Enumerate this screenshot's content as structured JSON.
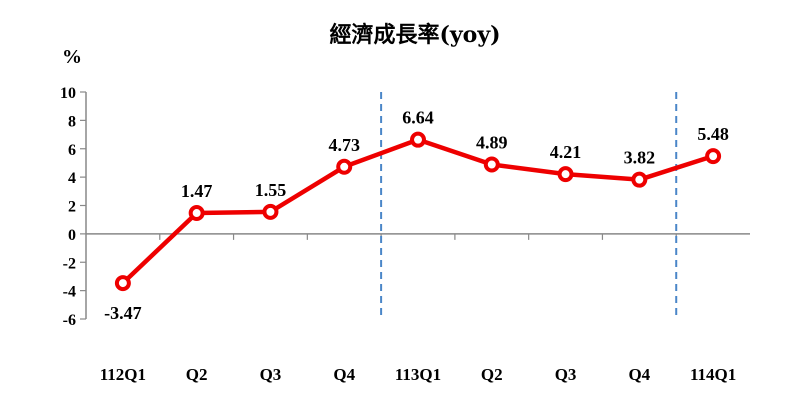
{
  "chart_data": {
    "type": "line",
    "title": "經濟成長率(yoy)",
    "ylabel": "%",
    "xlabel": "",
    "categories": [
      "112Q1",
      "Q2",
      "Q3",
      "Q4",
      "113Q1",
      "Q2",
      "Q3",
      "Q4",
      "114Q1"
    ],
    "series": [
      {
        "values": [
          -3.47,
          1.47,
          1.55,
          4.73,
          6.64,
          4.89,
          4.21,
          3.82,
          5.48
        ]
      }
    ],
    "data_labels": [
      "-3.47",
      "1.47",
      "1.55",
      "4.73",
      "6.64",
      "4.89",
      "4.21",
      "3.82",
      "5.48"
    ],
    "ylim": [
      -6,
      10
    ],
    "yticks": [
      "10",
      "8",
      "6",
      "4",
      "2",
      "0",
      "-2",
      "-4",
      "-6"
    ],
    "grid": false,
    "year_separators_after_index": [
      3,
      7
    ],
    "colors": {
      "line": "#ee0000",
      "marker_fill": "#ffffff",
      "separator": "#4a86c8",
      "axis": "#888888"
    }
  }
}
